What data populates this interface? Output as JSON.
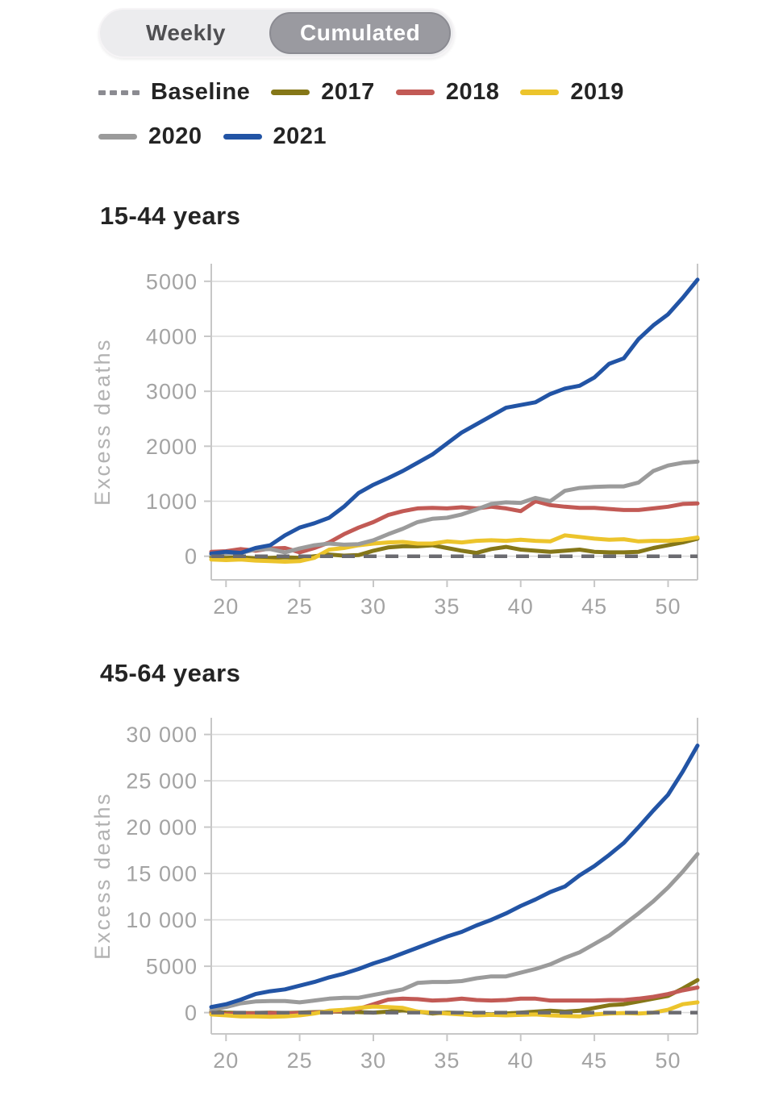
{
  "toggle": {
    "options": [
      {
        "label": "Weekly",
        "selected": false
      },
      {
        "label": "Cumulated",
        "selected": true
      }
    ]
  },
  "legend": {
    "items": [
      {
        "label": "Baseline",
        "color": "#8b8b91",
        "dashed": true
      },
      {
        "label": "2017",
        "color": "#857718",
        "dashed": false
      },
      {
        "label": "2018",
        "color": "#c25a55",
        "dashed": false
      },
      {
        "label": "2019",
        "color": "#ecc42c",
        "dashed": false
      },
      {
        "label": "2020",
        "color": "#9b9b9b",
        "dashed": false
      },
      {
        "label": "2021",
        "color": "#2254a5",
        "dashed": false
      }
    ]
  },
  "chart_data": [
    {
      "type": "line",
      "title": "15-44 years",
      "xlabel": "",
      "ylabel": "Excess deaths",
      "grid": true,
      "x": [
        19,
        20,
        21,
        22,
        23,
        24,
        25,
        26,
        27,
        28,
        29,
        30,
        31,
        32,
        33,
        34,
        35,
        36,
        37,
        38,
        39,
        40,
        41,
        42,
        43,
        44,
        45,
        46,
        47,
        48,
        49,
        50,
        51,
        52
      ],
      "xlim": [
        19,
        52
      ],
      "xticks": [
        20,
        25,
        30,
        35,
        40,
        45,
        50
      ],
      "yticks": [
        0,
        1000,
        2000,
        3000,
        4000,
        5000
      ],
      "ytick_labels": [
        "0",
        "1000",
        "2000",
        "3000",
        "4000",
        "5000"
      ],
      "ylim": [
        -430,
        5320
      ],
      "baseline": {
        "label": "Baseline",
        "value": 0,
        "color": "#6b6b70",
        "style": "dashed"
      },
      "series": [
        {
          "name": "2017",
          "color": "#857718",
          "values": [
            -20,
            -30,
            -20,
            -40,
            -30,
            -20,
            -30,
            0,
            30,
            10,
            20,
            100,
            160,
            180,
            180,
            200,
            150,
            100,
            60,
            130,
            170,
            120,
            100,
            80,
            100,
            120,
            80,
            70,
            70,
            80,
            150,
            200,
            250,
            320
          ]
        },
        {
          "name": "2018",
          "color": "#c25a55",
          "values": [
            80,
            90,
            130,
            100,
            140,
            150,
            70,
            150,
            250,
            400,
            520,
            620,
            750,
            820,
            870,
            880,
            870,
            890,
            870,
            900,
            870,
            820,
            1000,
            930,
            900,
            880,
            880,
            860,
            840,
            840,
            870,
            900,
            950,
            960
          ]
        },
        {
          "name": "2019",
          "color": "#ecc42c",
          "values": [
            -60,
            -70,
            -60,
            -80,
            -90,
            -100,
            -90,
            -30,
            120,
            150,
            200,
            230,
            250,
            260,
            230,
            230,
            270,
            250,
            280,
            290,
            280,
            300,
            280,
            270,
            380,
            350,
            320,
            300,
            310,
            270,
            280,
            280,
            300,
            340
          ]
        },
        {
          "name": "2020",
          "color": "#9b9b9b",
          "values": [
            30,
            50,
            60,
            120,
            130,
            70,
            140,
            200,
            230,
            210,
            220,
            290,
            400,
            500,
            620,
            680,
            700,
            760,
            850,
            950,
            980,
            970,
            1060,
            1000,
            1190,
            1240,
            1260,
            1270,
            1270,
            1340,
            1550,
            1650,
            1700,
            1720
          ]
        },
        {
          "name": "2021",
          "color": "#2254a5",
          "values": [
            50,
            80,
            60,
            150,
            200,
            380,
            520,
            600,
            700,
            900,
            1150,
            1300,
            1420,
            1550,
            1700,
            1850,
            2050,
            2250,
            2400,
            2550,
            2700,
            2750,
            2800,
            2950,
            3050,
            3100,
            3250,
            3500,
            3600,
            3950,
            4200,
            4400,
            4700,
            5030
          ]
        }
      ]
    },
    {
      "type": "line",
      "title": "45-64 years",
      "xlabel": "",
      "ylabel": "Excess deaths",
      "grid": true,
      "x": [
        19,
        20,
        21,
        22,
        23,
        24,
        25,
        26,
        27,
        28,
        29,
        30,
        31,
        32,
        33,
        34,
        35,
        36,
        37,
        38,
        39,
        40,
        41,
        42,
        43,
        44,
        45,
        46,
        47,
        48,
        49,
        50,
        51,
        52
      ],
      "xlim": [
        19,
        52
      ],
      "xticks": [
        20,
        25,
        30,
        35,
        40,
        45,
        50
      ],
      "yticks": [
        0,
        5000,
        10000,
        15000,
        20000,
        25000,
        30000
      ],
      "ytick_labels": [
        "0",
        "5000",
        "10 000",
        "15 000",
        "20 000",
        "25 000",
        "30 000"
      ],
      "ylim": [
        -2300,
        31800
      ],
      "baseline": {
        "label": "Baseline",
        "value": 0,
        "color": "#6b6b70",
        "style": "dashed"
      },
      "series": [
        {
          "name": "2017",
          "color": "#857718",
          "values": [
            100,
            0,
            -50,
            -50,
            0,
            -50,
            0,
            50,
            100,
            100,
            50,
            0,
            100,
            250,
            100,
            -100,
            0,
            -50,
            -150,
            -200,
            -100,
            0,
            100,
            200,
            100,
            200,
            500,
            800,
            900,
            1200,
            1500,
            1800,
            2600,
            3500
          ]
        },
        {
          "name": "2018",
          "color": "#c25a55",
          "values": [
            -100,
            -150,
            -100,
            -100,
            -50,
            -100,
            -50,
            0,
            100,
            200,
            400,
            900,
            1400,
            1500,
            1450,
            1300,
            1350,
            1500,
            1350,
            1300,
            1350,
            1500,
            1500,
            1300,
            1300,
            1300,
            1300,
            1350,
            1350,
            1500,
            1700,
            2000,
            2400,
            2700
          ]
        },
        {
          "name": "2019",
          "color": "#ecc42c",
          "values": [
            -200,
            -300,
            -400,
            -400,
            -450,
            -400,
            -300,
            -100,
            200,
            300,
            500,
            650,
            600,
            500,
            100,
            0,
            -100,
            -200,
            -300,
            -250,
            -300,
            -250,
            -200,
            -300,
            -350,
            -400,
            -200,
            -100,
            -50,
            -100,
            0,
            300,
            900,
            1100
          ]
        },
        {
          "name": "2020",
          "color": "#9b9b9b",
          "values": [
            300,
            600,
            1000,
            1200,
            1250,
            1250,
            1100,
            1300,
            1500,
            1600,
            1600,
            1900,
            2200,
            2500,
            3200,
            3300,
            3300,
            3400,
            3700,
            3900,
            3900,
            4300,
            4700,
            5200,
            5900,
            6500,
            7400,
            8300,
            9500,
            10700,
            12000,
            13500,
            15200,
            17100
          ]
        },
        {
          "name": "2021",
          "color": "#2254a5",
          "values": [
            600,
            900,
            1400,
            2000,
            2300,
            2500,
            2900,
            3300,
            3800,
            4200,
            4700,
            5300,
            5800,
            6400,
            7000,
            7600,
            8200,
            8700,
            9400,
            10000,
            10700,
            11500,
            12200,
            13000,
            13600,
            14800,
            15800,
            17000,
            18300,
            20000,
            21800,
            23500,
            26000,
            28800
          ]
        }
      ]
    }
  ]
}
